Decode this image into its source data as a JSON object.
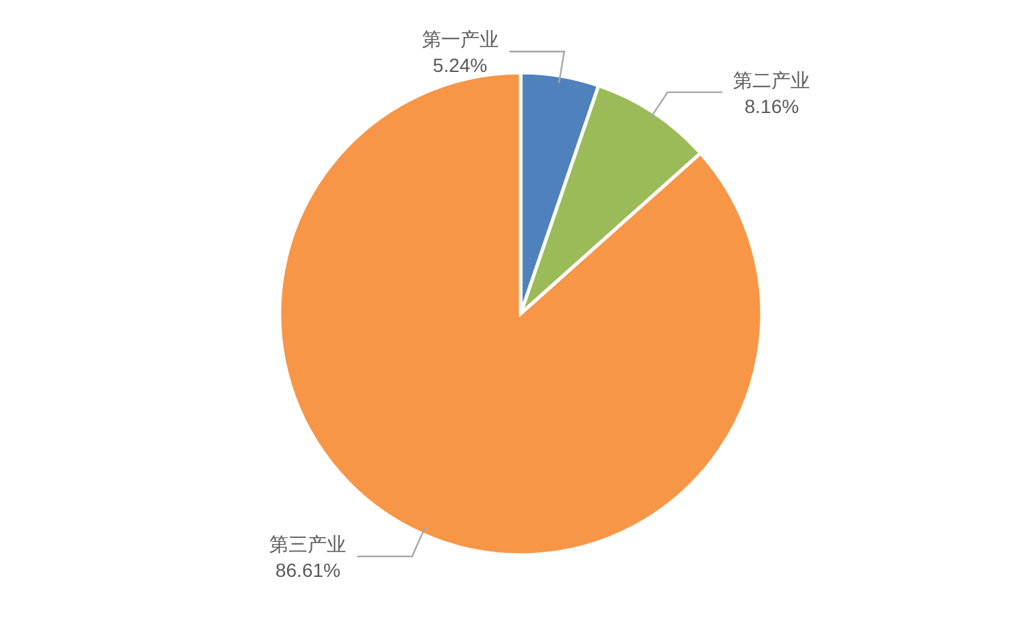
{
  "chart_data": {
    "type": "pie",
    "categories": [
      "第一产业",
      "第二产业",
      "第三产业"
    ],
    "values": [
      5.24,
      8.16,
      86.61
    ],
    "colors": [
      "#4f81bd",
      "#9bbb59",
      "#f79646"
    ],
    "value_labels": [
      "5.24%",
      "8.16%",
      "86.61%"
    ]
  }
}
